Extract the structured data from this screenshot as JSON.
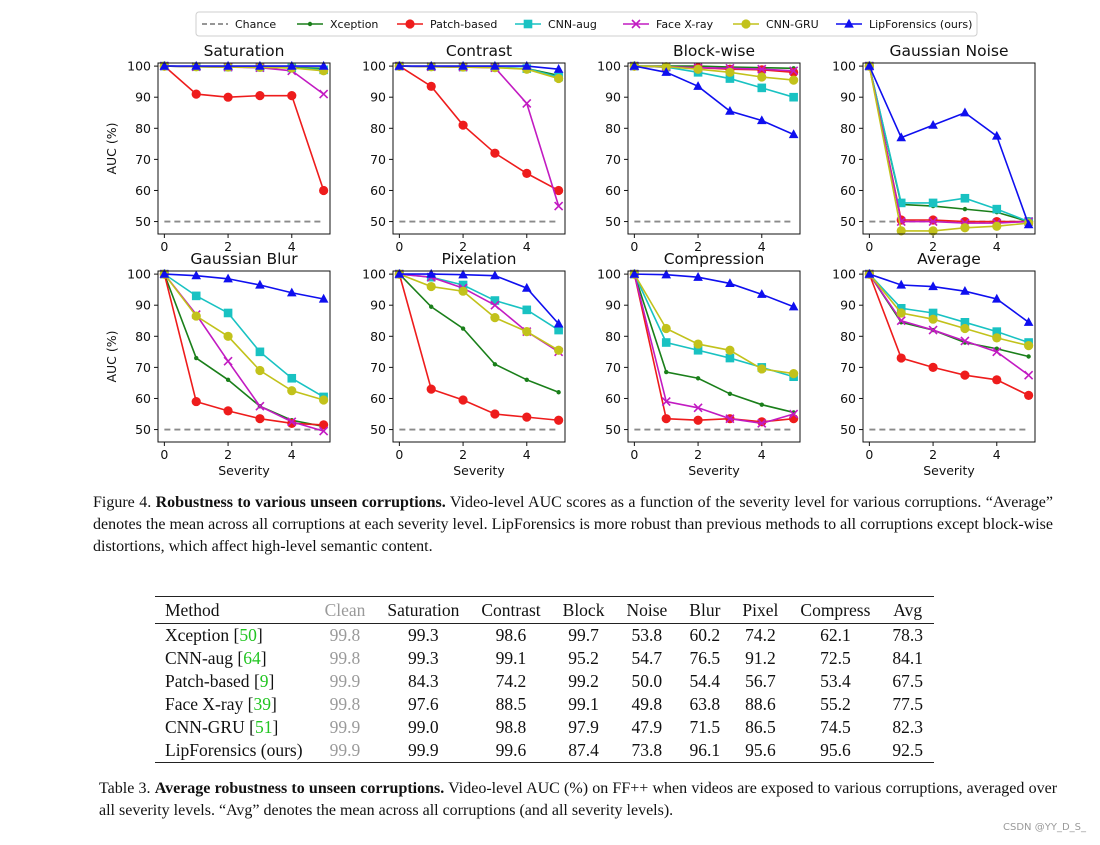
{
  "chart_data": {
    "type": "line",
    "xlabel": "Severity",
    "ylabel": "AUC (%)",
    "x": [
      0,
      1,
      2,
      3,
      4,
      5
    ],
    "xticks": [
      0,
      2,
      4
    ],
    "yticks": [
      50,
      60,
      70,
      80,
      90,
      100
    ],
    "ylim": [
      46,
      101
    ],
    "xlim": [
      -0.2,
      5.2
    ],
    "legend": [
      {
        "name": "Chance",
        "color": "#888888",
        "marker": "none",
        "dashed": true
      },
      {
        "name": "Xception",
        "color": "#1a7f1a",
        "marker": "dot"
      },
      {
        "name": "Patch-based",
        "color": "#ee1c1c",
        "marker": "circle"
      },
      {
        "name": "CNN-aug",
        "color": "#19c2c2",
        "marker": "square"
      },
      {
        "name": "Face X-ray",
        "color": "#c21bc2",
        "marker": "x"
      },
      {
        "name": "CNN-GRU",
        "color": "#c2c21b",
        "marker": "circle"
      },
      {
        "name": "LipForensics (ours)",
        "color": "#0f0fef",
        "marker": "triangle"
      }
    ],
    "panels": [
      {
        "title": "Saturation",
        "series": {
          "Chance": [
            50,
            50,
            50,
            50,
            50,
            50
          ],
          "Xception": [
            100,
            99.8,
            99.7,
            99.6,
            99.5,
            99.3
          ],
          "Patch-based": [
            100,
            91,
            90,
            90.5,
            90.5,
            60
          ],
          "CNN-aug": [
            100,
            99.8,
            99.7,
            99.6,
            99.4,
            98.8
          ],
          "Face X-ray": [
            100,
            99.8,
            99.7,
            99.5,
            98.5,
            91
          ],
          "CNN-GRU": [
            100,
            99.8,
            99.7,
            99.6,
            99.4,
            98.5
          ],
          "LipForensics (ours)": [
            100,
            100,
            100,
            100,
            100,
            100
          ]
        }
      },
      {
        "title": "Contrast",
        "series": {
          "Chance": [
            50,
            50,
            50,
            50,
            50,
            50
          ],
          "Xception": [
            100,
            99.8,
            99.7,
            99.6,
            99.2,
            97
          ],
          "Patch-based": [
            100,
            93.5,
            81,
            72,
            65.5,
            60
          ],
          "CNN-aug": [
            100,
            99.8,
            99.7,
            99.6,
            99.2,
            96.5
          ],
          "Face X-ray": [
            100,
            99.8,
            99.7,
            99.5,
            88,
            55
          ],
          "CNN-GRU": [
            100,
            99.8,
            99.7,
            99.5,
            99,
            96
          ],
          "LipForensics (ours)": [
            100,
            100,
            100,
            100,
            100,
            99
          ]
        }
      },
      {
        "title": "Block-wise",
        "series": {
          "Chance": [
            50,
            50,
            50,
            50,
            50,
            50
          ],
          "Xception": [
            100,
            100,
            100,
            99.7,
            99.5,
            99.3
          ],
          "Patch-based": [
            100,
            99.7,
            99.5,
            99,
            98.8,
            98
          ],
          "CNN-aug": [
            100,
            99.7,
            98,
            96,
            93,
            90
          ],
          "Face X-ray": [
            100,
            99.8,
            99.5,
            99.3,
            99,
            98.5
          ],
          "CNN-GRU": [
            100,
            99.8,
            99,
            98,
            96.5,
            95.5
          ],
          "LipForensics (ours)": [
            100,
            98,
            93.5,
            85.5,
            82.5,
            78
          ]
        }
      },
      {
        "title": "Gaussian Noise",
        "series": {
          "Chance": [
            50,
            50,
            50,
            50,
            50,
            50
          ],
          "Xception": [
            100,
            55.5,
            55,
            54,
            53,
            50
          ],
          "Patch-based": [
            100,
            50.5,
            50.5,
            50,
            50,
            50
          ],
          "CNN-aug": [
            100,
            56,
            56,
            57.5,
            54,
            50
          ],
          "Face X-ray": [
            100,
            50,
            50,
            49.5,
            49.5,
            50
          ],
          "CNN-GRU": [
            100,
            47,
            47,
            48,
            48.5,
            49.5
          ],
          "LipForensics (ours)": [
            100,
            77,
            81,
            85,
            77.5,
            49
          ]
        }
      },
      {
        "title": "Gaussian Blur",
        "series": {
          "Chance": [
            50,
            50,
            50,
            50,
            50,
            50
          ],
          "Xception": [
            100,
            73,
            66,
            57.5,
            53,
            51
          ],
          "Patch-based": [
            100,
            59,
            56,
            53.5,
            52,
            51.5
          ],
          "CNN-aug": [
            100,
            93,
            87.5,
            75,
            66.5,
            60.5
          ],
          "Face X-ray": [
            100,
            87,
            72,
            57.5,
            52.5,
            49.5
          ],
          "CNN-GRU": [
            100,
            86.5,
            80,
            69,
            62.5,
            59.5
          ],
          "LipForensics (ours)": [
            100,
            99.5,
            98.5,
            96.5,
            94,
            92
          ]
        }
      },
      {
        "title": "Pixelation",
        "series": {
          "Chance": [
            50,
            50,
            50,
            50,
            50,
            50
          ],
          "Xception": [
            100,
            89.5,
            82.5,
            71,
            66,
            62
          ],
          "Patch-based": [
            100,
            63,
            59.5,
            55,
            54,
            53
          ],
          "CNN-aug": [
            100,
            99,
            96.5,
            91.5,
            88.5,
            82
          ],
          "Face X-ray": [
            100,
            99,
            95.5,
            90,
            81.5,
            75
          ],
          "CNN-GRU": [
            100,
            96,
            94.5,
            86,
            81.5,
            75.5
          ],
          "LipForensics (ours)": [
            100,
            100,
            99.8,
            99.5,
            95.5,
            84
          ]
        }
      },
      {
        "title": "Compression",
        "series": {
          "Chance": [
            50,
            50,
            50,
            50,
            50,
            50
          ],
          "Xception": [
            100,
            68.5,
            66.5,
            61.5,
            58,
            55.5
          ],
          "Patch-based": [
            100,
            53.5,
            53,
            53.5,
            52.5,
            53.5
          ],
          "CNN-aug": [
            100,
            78,
            75.5,
            73,
            70,
            67
          ],
          "Face X-ray": [
            100,
            59,
            57,
            53.5,
            52,
            55
          ],
          "CNN-GRU": [
            100,
            82.5,
            77.5,
            75.5,
            69.5,
            68
          ],
          "LipForensics (ours)": [
            100,
            99.8,
            99,
            97,
            93.5,
            89.5
          ]
        }
      },
      {
        "title": "Average",
        "series": {
          "Chance": [
            50,
            50,
            50,
            50,
            50,
            50
          ],
          "Xception": [
            100,
            84.5,
            82,
            78,
            76,
            73.5
          ],
          "Patch-based": [
            100,
            73,
            70,
            67.5,
            66,
            61
          ],
          "CNN-aug": [
            100,
            89,
            87.5,
            84.5,
            81.5,
            78
          ],
          "Face X-ray": [
            100,
            85,
            82,
            78.5,
            75,
            67.5
          ],
          "CNN-GRU": [
            100,
            87.5,
            85.5,
            82.5,
            79.5,
            77
          ],
          "LipForensics (ours)": [
            100,
            96.5,
            96,
            94.5,
            92,
            84.5
          ]
        }
      }
    ]
  },
  "figure_caption": {
    "label": "Figure 4.",
    "bold_title": "Robustness to various unseen corruptions.",
    "text": "Video-level AUC scores as a function of the severity level for various corruptions. “Average” denotes the mean across all corruptions at each severity level. LipForensics is more robust than previous methods to all corruptions except block-wise distortions, which affect high-level semantic content."
  },
  "table": {
    "headers": [
      "Method",
      "Clean",
      "Saturation",
      "Contrast",
      "Block",
      "Noise",
      "Blur",
      "Pixel",
      "Compress",
      "Avg"
    ],
    "rows": [
      {
        "method": "Xception",
        "ref": "50",
        "values": [
          "99.8",
          "99.3",
          "98.6",
          "99.7",
          "53.8",
          "60.2",
          "74.2",
          "62.1",
          "78.3"
        ]
      },
      {
        "method": "CNN-aug",
        "ref": "64",
        "values": [
          "99.8",
          "99.3",
          "99.1",
          "95.2",
          "54.7",
          "76.5",
          "91.2",
          "72.5",
          "84.1"
        ]
      },
      {
        "method": "Patch-based",
        "ref": "9",
        "values": [
          "99.9",
          "84.3",
          "74.2",
          "99.2",
          "50.0",
          "54.4",
          "56.7",
          "53.4",
          "67.5"
        ]
      },
      {
        "method": "Face X-ray",
        "ref": "39",
        "values": [
          "99.8",
          "97.6",
          "88.5",
          "99.1",
          "49.8",
          "63.8",
          "88.6",
          "55.2",
          "77.5"
        ]
      },
      {
        "method": "CNN-GRU",
        "ref": "51",
        "values": [
          "99.9",
          "99.0",
          "98.8",
          "97.9",
          "47.9",
          "71.5",
          "86.5",
          "74.5",
          "82.3"
        ]
      },
      {
        "method": "LipForensics (ours)",
        "ref": "",
        "values": [
          "99.9",
          "99.9",
          "99.6",
          "87.4",
          "73.8",
          "96.1",
          "95.6",
          "95.6",
          "92.5"
        ]
      }
    ]
  },
  "table_caption": {
    "label": "Table 3.",
    "bold_title": "Average robustness to unseen corruptions.",
    "text": "Video-level AUC (%) on FF++ when videos are exposed to various corruptions, averaged over all severity levels. “Avg” denotes the mean across all corruptions (and all severity levels)."
  },
  "watermark": "CSDN @YY_D_S_"
}
